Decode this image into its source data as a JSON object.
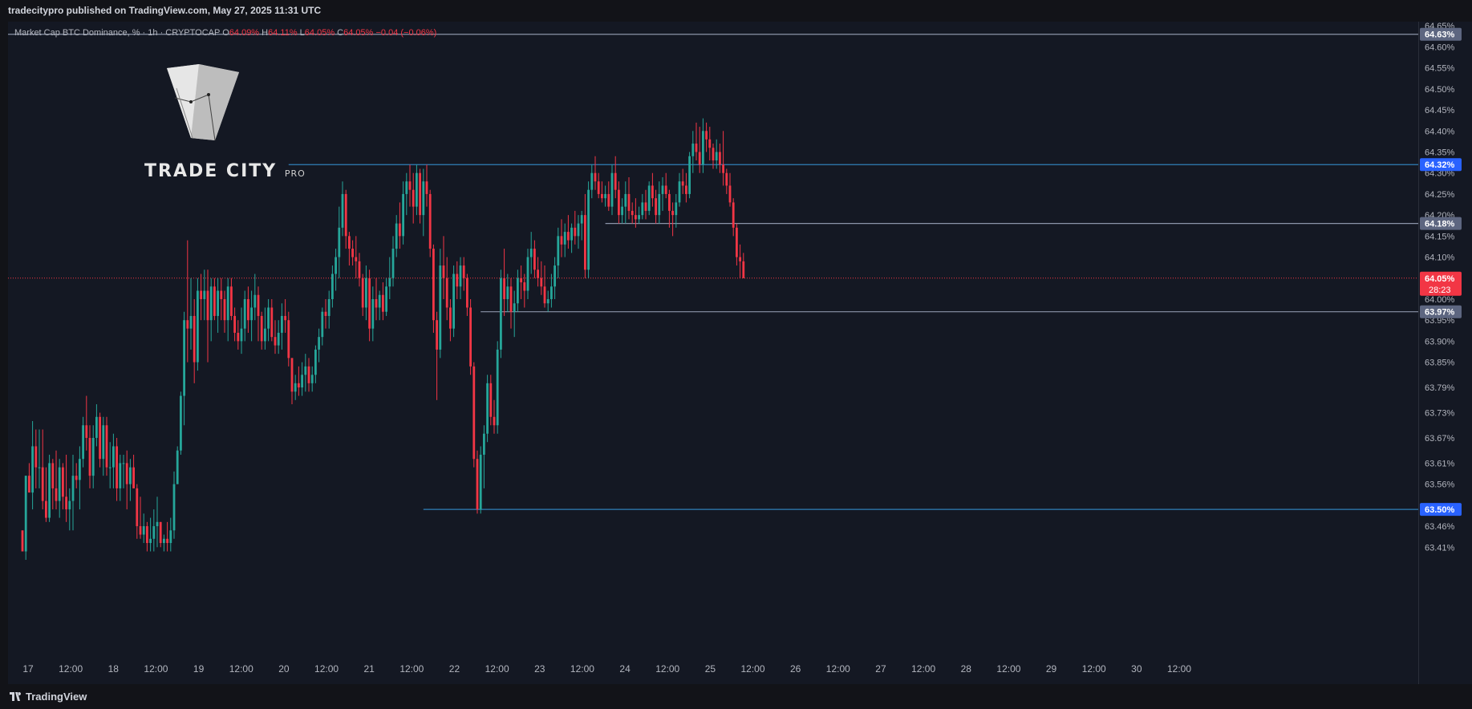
{
  "header": {
    "publisher_line": "tradecitypro published on TradingView.com, May 27, 2025 11:31 UTC"
  },
  "legend": {
    "symbol": "Market Cap BTC Dominance, % · 1h · CRYPTOCAP",
    "o_label": "O",
    "o_value": "64.09%",
    "h_label": "H",
    "h_value": "64.11%",
    "l_label": "L",
    "l_value": "64.05%",
    "c_label": "C",
    "c_value": "64.05%",
    "change": "−0.04 (−0.06%)"
  },
  "watermark": {
    "brand": "TRADE CITY",
    "suffix": "PRO"
  },
  "footer": {
    "brand": "TradingView"
  },
  "colors": {
    "background": "#141823",
    "up": "#26a69a",
    "down": "#f23645",
    "level_blue": "#2f7fb8",
    "level_gray": "#8b93a8",
    "label_blue": "#2962ff"
  },
  "chart_data": {
    "type": "candlestick",
    "symbol": "Market Cap BTC Dominance, %",
    "timeframe": "1h",
    "ylim": [
      63.38,
      64.66
    ],
    "x_tick_labels": [
      "17",
      "12:00",
      "18",
      "12:00",
      "19",
      "12:00",
      "20",
      "12:00",
      "21",
      "12:00",
      "22",
      "12:00",
      "23",
      "12:00",
      "24",
      "12:00",
      "25",
      "12:00",
      "26",
      "12:00",
      "27",
      "12:00",
      "28",
      "12:00",
      "29",
      "12:00",
      "30",
      "12:00"
    ],
    "y_tick_labels": [
      {
        "value": 64.65,
        "label": "64.65%"
      },
      {
        "value": 64.6,
        "label": "64.60%"
      },
      {
        "value": 64.55,
        "label": "64.55%"
      },
      {
        "value": 64.5,
        "label": "64.50%"
      },
      {
        "value": 64.45,
        "label": "64.45%"
      },
      {
        "value": 64.4,
        "label": "64.40%"
      },
      {
        "value": 64.35,
        "label": "64.35%"
      },
      {
        "value": 64.3,
        "label": "64.30%"
      },
      {
        "value": 64.25,
        "label": "64.25%"
      },
      {
        "value": 64.2,
        "label": "64.20%"
      },
      {
        "value": 64.15,
        "label": "64.15%"
      },
      {
        "value": 64.1,
        "label": "64.10%"
      },
      {
        "value": 64.0,
        "label": "64.00%"
      },
      {
        "value": 63.95,
        "label": "63.95%"
      },
      {
        "value": 63.9,
        "label": "63.90%"
      },
      {
        "value": 63.85,
        "label": "63.85%"
      },
      {
        "value": 63.79,
        "label": "63.79%"
      },
      {
        "value": 63.73,
        "label": "63.73%"
      },
      {
        "value": 63.67,
        "label": "63.67%"
      },
      {
        "value": 63.61,
        "label": "63.61%"
      },
      {
        "value": 63.56,
        "label": "63.56%"
      },
      {
        "value": 63.46,
        "label": "63.46%"
      },
      {
        "value": 63.41,
        "label": "63.41%"
      }
    ],
    "last_price": {
      "value": 64.05,
      "label": "64.05%",
      "countdown": "28:23"
    },
    "levels": [
      {
        "value": 64.63,
        "label": "64.63%",
        "style": "gray",
        "from_index": 0
      },
      {
        "value": 64.32,
        "label": "64.32%",
        "style": "blue",
        "from_index": 79
      },
      {
        "value": 64.18,
        "label": "64.18%",
        "style": "gray",
        "from_index": 173
      },
      {
        "value": 63.97,
        "label": "63.97%",
        "style": "gray",
        "from_index": 136
      },
      {
        "value": 63.5,
        "label": "63.50%",
        "style": "blue",
        "from_index": 119
      }
    ],
    "candles": [
      [
        63.45,
        63.45,
        63.4,
        63.4
      ],
      [
        63.4,
        63.58,
        63.38,
        63.58
      ],
      [
        63.58,
        63.61,
        63.55,
        63.54
      ],
      [
        63.54,
        63.71,
        63.5,
        63.65
      ],
      [
        63.65,
        63.69,
        63.55,
        63.6
      ],
      [
        63.6,
        63.69,
        63.55,
        63.6
      ],
      [
        63.6,
        63.69,
        63.5,
        63.52
      ],
      [
        63.52,
        63.6,
        63.47,
        63.48
      ],
      [
        63.48,
        63.63,
        63.47,
        63.61
      ],
      [
        63.61,
        63.62,
        63.5,
        63.55
      ],
      [
        63.55,
        63.64,
        63.5,
        63.52
      ],
      [
        63.52,
        63.62,
        63.48,
        63.6
      ],
      [
        63.6,
        63.61,
        63.5,
        63.53
      ],
      [
        63.53,
        63.63,
        63.47,
        63.5
      ],
      [
        63.5,
        63.55,
        63.45,
        63.52
      ],
      [
        63.52,
        63.63,
        63.45,
        63.58
      ],
      [
        63.58,
        63.61,
        63.55,
        63.57
      ],
      [
        63.57,
        63.65,
        63.5,
        63.62
      ],
      [
        63.62,
        63.72,
        63.6,
        63.7
      ],
      [
        63.7,
        63.77,
        63.64,
        63.67
      ],
      [
        63.67,
        63.7,
        63.55,
        63.58
      ],
      [
        63.58,
        63.7,
        63.55,
        63.67
      ],
      [
        63.67,
        63.75,
        63.65,
        63.72
      ],
      [
        63.72,
        63.73,
        63.6,
        63.62
      ],
      [
        63.62,
        63.72,
        63.58,
        63.7
      ],
      [
        63.7,
        63.72,
        63.58,
        63.6
      ],
      [
        63.6,
        63.66,
        63.55,
        63.6
      ],
      [
        63.6,
        63.68,
        63.55,
        63.65
      ],
      [
        63.65,
        63.67,
        63.52,
        63.55
      ],
      [
        63.55,
        63.63,
        63.52,
        63.61
      ],
      [
        63.61,
        63.63,
        63.55,
        63.61
      ],
      [
        63.61,
        63.64,
        63.5,
        63.56
      ],
      [
        63.56,
        63.62,
        63.52,
        63.6
      ],
      [
        63.6,
        63.63,
        63.55,
        63.55
      ],
      [
        63.55,
        63.56,
        63.43,
        63.46
      ],
      [
        63.46,
        63.53,
        63.43,
        63.44
      ],
      [
        63.44,
        63.49,
        63.42,
        63.46
      ],
      [
        63.46,
        63.47,
        63.4,
        63.42
      ],
      [
        63.42,
        63.48,
        63.4,
        63.43
      ],
      [
        63.43,
        63.5,
        63.4,
        63.46
      ],
      [
        63.46,
        63.53,
        63.41,
        63.47
      ],
      [
        63.47,
        63.47,
        63.41,
        63.42
      ],
      [
        63.42,
        63.44,
        63.4,
        63.43
      ],
      [
        63.43,
        63.47,
        63.4,
        63.42
      ],
      [
        63.42,
        63.48,
        63.4,
        63.45
      ],
      [
        63.45,
        63.59,
        63.43,
        63.56
      ],
      [
        63.56,
        63.65,
        63.56,
        63.64
      ],
      [
        63.64,
        63.78,
        63.63,
        63.77
      ],
      [
        63.77,
        63.97,
        63.7,
        63.95
      ],
      [
        63.95,
        64.14,
        63.85,
        63.93
      ],
      [
        63.93,
        64.05,
        63.88,
        63.96
      ],
      [
        63.96,
        64.0,
        63.8,
        63.85
      ],
      [
        63.85,
        64.05,
        63.83,
        64.02
      ],
      [
        64.02,
        64.06,
        63.95,
        64.0
      ],
      [
        64.0,
        64.07,
        63.95,
        64.02
      ],
      [
        64.02,
        64.07,
        63.85,
        63.95
      ],
      [
        63.95,
        64.05,
        63.9,
        64.03
      ],
      [
        64.03,
        64.05,
        63.95,
        63.96
      ],
      [
        63.96,
        64.05,
        63.92,
        64.02
      ],
      [
        64.02,
        64.05,
        63.95,
        64.0
      ],
      [
        64.0,
        64.02,
        63.92,
        63.95
      ],
      [
        63.95,
        64.05,
        63.9,
        64.03
      ],
      [
        64.03,
        64.05,
        63.95,
        63.96
      ],
      [
        63.96,
        63.98,
        63.9,
        63.92
      ],
      [
        63.92,
        63.95,
        63.88,
        63.9
      ],
      [
        63.9,
        63.98,
        63.87,
        63.93
      ],
      [
        63.93,
        64.02,
        63.9,
        64.0
      ],
      [
        64.0,
        64.03,
        63.92,
        63.95
      ],
      [
        63.95,
        64.02,
        63.9,
        63.98
      ],
      [
        63.98,
        64.06,
        63.95,
        64.01
      ],
      [
        64.01,
        64.03,
        63.9,
        63.96
      ],
      [
        63.96,
        63.97,
        63.88,
        63.9
      ],
      [
        63.9,
        63.98,
        63.88,
        63.93
      ],
      [
        63.93,
        64.0,
        63.9,
        63.98
      ],
      [
        63.98,
        64.0,
        63.9,
        63.91
      ],
      [
        63.91,
        63.95,
        63.87,
        63.89
      ],
      [
        63.89,
        63.95,
        63.87,
        63.92
      ],
      [
        63.92,
        63.99,
        63.88,
        63.96
      ],
      [
        63.96,
        64.0,
        63.92,
        63.95
      ],
      [
        63.95,
        63.97,
        63.84,
        63.86
      ],
      [
        63.86,
        63.86,
        63.75,
        63.78
      ],
      [
        63.78,
        63.82,
        63.76,
        63.8
      ],
      [
        63.8,
        63.84,
        63.77,
        63.79
      ],
      [
        63.79,
        63.85,
        63.77,
        63.82
      ],
      [
        63.82,
        63.87,
        63.78,
        63.84
      ],
      [
        63.84,
        63.86,
        63.78,
        63.8
      ],
      [
        63.8,
        63.84,
        63.78,
        63.82
      ],
      [
        63.82,
        63.89,
        63.8,
        63.88
      ],
      [
        63.88,
        63.93,
        63.85,
        63.91
      ],
      [
        63.91,
        63.98,
        63.89,
        63.97
      ],
      [
        63.97,
        64.0,
        63.93,
        63.96
      ],
      [
        63.96,
        64.02,
        63.93,
        64.0
      ],
      [
        64.0,
        64.08,
        63.98,
        64.06
      ],
      [
        64.06,
        64.12,
        64.02,
        64.1
      ],
      [
        64.1,
        64.22,
        64.05,
        64.17
      ],
      [
        64.17,
        64.28,
        64.15,
        64.25
      ],
      [
        64.25,
        64.26,
        64.12,
        64.15
      ],
      [
        64.15,
        64.16,
        64.08,
        64.12
      ],
      [
        64.12,
        64.14,
        64.08,
        64.1
      ],
      [
        64.1,
        64.15,
        64.05,
        64.09
      ],
      [
        64.09,
        64.11,
        64.03,
        64.05
      ],
      [
        64.05,
        64.06,
        63.96,
        63.98
      ],
      [
        63.98,
        64.08,
        63.95,
        64.05
      ],
      [
        64.05,
        64.07,
        63.9,
        63.93
      ],
      [
        63.93,
        64.03,
        63.9,
        64.0
      ],
      [
        64.0,
        64.05,
        63.95,
        63.98
      ],
      [
        63.98,
        64.02,
        63.95,
        64.01
      ],
      [
        64.01,
        64.04,
        63.95,
        63.97
      ],
      [
        63.97,
        64.05,
        63.96,
        64.03
      ],
      [
        64.03,
        64.1,
        64.0,
        64.05
      ],
      [
        64.05,
        64.15,
        64.03,
        64.12
      ],
      [
        64.12,
        64.2,
        64.1,
        64.18
      ],
      [
        64.18,
        64.23,
        64.12,
        64.15
      ],
      [
        64.15,
        64.28,
        64.13,
        64.25
      ],
      [
        64.25,
        64.3,
        64.2,
        64.28
      ],
      [
        64.28,
        64.32,
        64.22,
        64.26
      ],
      [
        64.26,
        64.3,
        64.18,
        64.22
      ],
      [
        64.22,
        64.32,
        64.2,
        64.3
      ],
      [
        64.3,
        64.31,
        64.18,
        64.2
      ],
      [
        64.2,
        64.31,
        64.15,
        64.28
      ],
      [
        64.28,
        64.32,
        64.22,
        64.25
      ],
      [
        64.25,
        64.26,
        64.1,
        64.12
      ],
      [
        64.12,
        64.13,
        63.92,
        63.95
      ],
      [
        63.95,
        63.97,
        63.76,
        63.88
      ],
      [
        63.88,
        64.12,
        63.86,
        64.08
      ],
      [
        64.08,
        64.15,
        64.0,
        64.05
      ],
      [
        64.05,
        64.1,
        63.95,
        63.98
      ],
      [
        63.98,
        64.0,
        63.9,
        63.93
      ],
      [
        63.93,
        64.08,
        63.91,
        64.06
      ],
      [
        64.06,
        64.09,
        64.0,
        64.03
      ],
      [
        64.03,
        64.1,
        64.0,
        64.08
      ],
      [
        64.08,
        64.1,
        64.02,
        64.05
      ],
      [
        64.05,
        64.06,
        63.96,
        63.98
      ],
      [
        63.98,
        64.0,
        63.82,
        63.84
      ],
      [
        63.84,
        63.85,
        63.6,
        63.62
      ],
      [
        63.62,
        63.64,
        63.49,
        63.5
      ],
      [
        63.5,
        63.65,
        63.49,
        63.63
      ],
      [
        63.63,
        63.7,
        63.55,
        63.68
      ],
      [
        63.68,
        63.82,
        63.66,
        63.8
      ],
      [
        63.8,
        63.82,
        63.7,
        63.72
      ],
      [
        63.72,
        63.76,
        63.68,
        63.7
      ],
      [
        63.7,
        63.9,
        63.68,
        63.88
      ],
      [
        63.88,
        64.07,
        63.86,
        64.05
      ],
      [
        64.05,
        64.12,
        63.96,
        64.0
      ],
      [
        64.0,
        64.06,
        63.97,
        64.03
      ],
      [
        64.03,
        64.05,
        63.93,
        63.97
      ],
      [
        63.97,
        64.02,
        63.91,
        63.99
      ],
      [
        63.99,
        64.07,
        63.97,
        64.05
      ],
      [
        64.05,
        64.08,
        64.0,
        64.04
      ],
      [
        64.04,
        64.06,
        63.98,
        64.02
      ],
      [
        64.02,
        64.12,
        64.0,
        64.1
      ],
      [
        64.1,
        64.16,
        64.06,
        64.12
      ],
      [
        64.12,
        64.14,
        64.05,
        64.07
      ],
      [
        64.07,
        64.1,
        64.03,
        64.05
      ],
      [
        64.05,
        64.09,
        64.01,
        64.03
      ],
      [
        64.03,
        64.08,
        63.98,
        63.99
      ],
      [
        63.99,
        64.02,
        63.97,
        64.0
      ],
      [
        64.0,
        64.06,
        63.98,
        64.03
      ],
      [
        64.03,
        64.1,
        64.0,
        64.08
      ],
      [
        64.08,
        64.17,
        64.05,
        64.15
      ],
      [
        64.15,
        64.19,
        64.1,
        64.13
      ],
      [
        64.13,
        64.18,
        64.1,
        64.16
      ],
      [
        64.16,
        64.2,
        64.12,
        64.14
      ],
      [
        64.14,
        64.18,
        64.11,
        64.17
      ],
      [
        64.17,
        64.21,
        64.13,
        64.15
      ],
      [
        64.15,
        64.2,
        64.12,
        64.18
      ],
      [
        64.18,
        64.21,
        64.14,
        64.2
      ],
      [
        64.2,
        64.25,
        64.05,
        64.07
      ],
      [
        64.07,
        64.28,
        64.05,
        64.26
      ],
      [
        64.26,
        64.32,
        64.24,
        64.3
      ],
      [
        64.3,
        64.34,
        64.26,
        64.28
      ],
      [
        64.28,
        64.3,
        64.24,
        64.25
      ],
      [
        64.25,
        64.28,
        64.23,
        64.24
      ],
      [
        64.24,
        64.27,
        64.22,
        64.25
      ],
      [
        64.25,
        64.28,
        64.21,
        64.22
      ],
      [
        64.22,
        64.32,
        64.2,
        64.3
      ],
      [
        64.3,
        64.34,
        64.24,
        64.26
      ],
      [
        64.26,
        64.28,
        64.18,
        64.2
      ],
      [
        64.2,
        64.24,
        64.18,
        64.22
      ],
      [
        64.22,
        64.28,
        64.18,
        64.25
      ],
      [
        64.25,
        64.29,
        64.19,
        64.21
      ],
      [
        64.21,
        64.23,
        64.18,
        64.2
      ],
      [
        64.2,
        64.24,
        64.17,
        64.19
      ],
      [
        64.19,
        64.22,
        64.18,
        64.2
      ],
      [
        64.2,
        64.25,
        64.19,
        64.23
      ],
      [
        64.23,
        64.26,
        64.19,
        64.21
      ],
      [
        64.21,
        64.28,
        64.2,
        64.27
      ],
      [
        64.27,
        64.3,
        64.22,
        64.24
      ],
      [
        64.24,
        64.26,
        64.18,
        64.2
      ],
      [
        64.2,
        64.28,
        64.18,
        64.25
      ],
      [
        64.25,
        64.29,
        64.21,
        64.27
      ],
      [
        64.27,
        64.3,
        64.24,
        64.25
      ],
      [
        64.25,
        64.26,
        64.17,
        64.21
      ],
      [
        64.21,
        64.23,
        64.15,
        64.2
      ],
      [
        64.2,
        64.25,
        64.17,
        64.23
      ],
      [
        64.23,
        64.3,
        64.22,
        64.28
      ],
      [
        64.28,
        64.31,
        64.25,
        64.27
      ],
      [
        64.27,
        64.3,
        64.23,
        64.25
      ],
      [
        64.25,
        64.35,
        64.24,
        64.34
      ],
      [
        64.34,
        64.4,
        64.3,
        64.37
      ],
      [
        64.37,
        64.42,
        64.33,
        64.35
      ],
      [
        64.35,
        64.41,
        64.3,
        64.32
      ],
      [
        64.32,
        64.43,
        64.3,
        64.4
      ],
      [
        64.4,
        64.42,
        64.35,
        64.38
      ],
      [
        64.38,
        64.41,
        64.33,
        64.36
      ],
      [
        64.36,
        64.37,
        64.31,
        64.33
      ],
      [
        64.33,
        64.38,
        64.31,
        64.35
      ],
      [
        64.35,
        64.37,
        64.3,
        64.32
      ],
      [
        64.32,
        64.4,
        64.27,
        64.3
      ],
      [
        64.3,
        64.31,
        64.25,
        64.27
      ],
      [
        64.27,
        64.3,
        64.22,
        64.23
      ],
      [
        64.23,
        64.24,
        64.15,
        64.17
      ],
      [
        64.17,
        64.18,
        64.08,
        64.1
      ],
      [
        64.1,
        64.13,
        64.05,
        64.09
      ],
      [
        64.09,
        64.11,
        64.05,
        64.05
      ]
    ]
  }
}
